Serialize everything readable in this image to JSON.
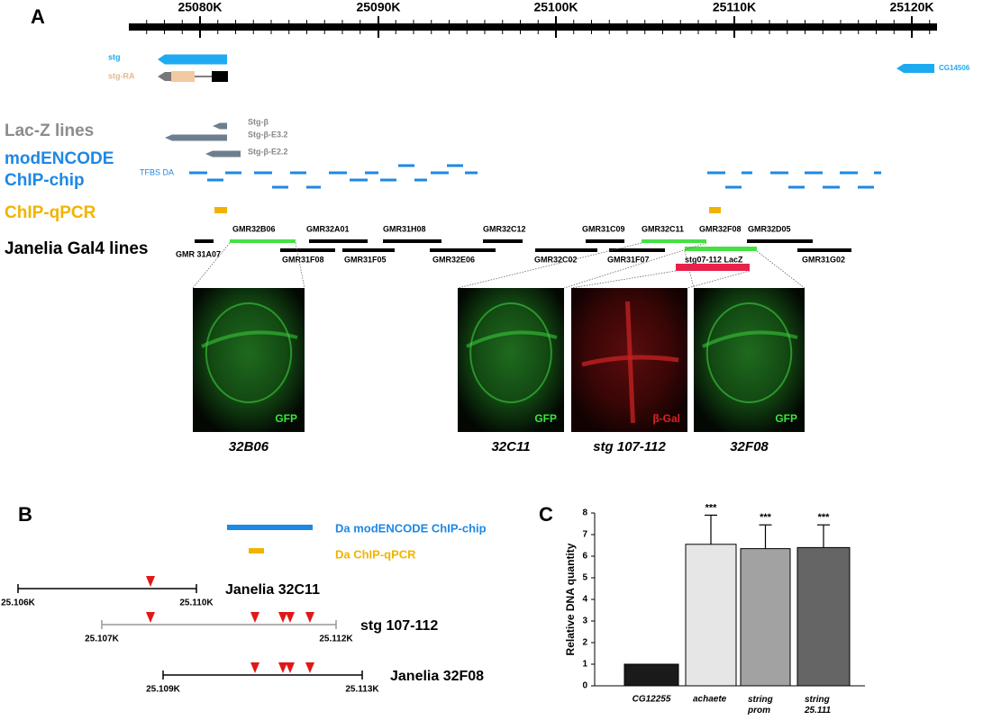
{
  "panel_a": {
    "letter": "A",
    "ruler_ticks": [
      "25080K",
      "25090K",
      "25100K",
      "25110K",
      "25120K"
    ],
    "genes": [
      "stg",
      "stg-RA",
      "CG14506"
    ],
    "lacz_label": "Lac-Z lines",
    "lacz_lines": [
      "Stg-β",
      "Stg-β-E3.2",
      "Stg-β-E2.2"
    ],
    "modencode_label": [
      "modENCODE",
      "ChIP-chip"
    ],
    "tfbs_label": "TFBS DA",
    "qpcr_label": "ChIP-qPCR",
    "janelia_label": "Janelia Gal4 lines",
    "gal4_top": [
      "GMR32B06",
      "GMR32A01",
      "GMR31H08",
      "GMR32C12",
      "GMR31C09",
      "GMR32C11",
      "GMR32F08",
      "GMR32D05"
    ],
    "gal4_bottom": [
      "GMR 31A07",
      "GMR31F08",
      "GMR31F05",
      "GMR32E06",
      "GMR32C02",
      "GMR31F07",
      "GMR31G02"
    ],
    "lacz_construct": "stg07-112 LacZ",
    "images": [
      {
        "stain": "GFP",
        "caption": "32B06"
      },
      {
        "stain": "GFP",
        "caption": "32C11"
      },
      {
        "stain": "β-Gal",
        "caption": "stg 107-112"
      },
      {
        "stain": "GFP",
        "caption": "32F08"
      }
    ]
  },
  "panel_b": {
    "letter": "B",
    "legend": [
      "Da modENCODE ChIP-chip",
      "Da ChIP-qPCR"
    ],
    "constructs": [
      {
        "name": "Janelia 32C11",
        "start": "25.106K",
        "end": "25.110K"
      },
      {
        "name": "stg 107-112",
        "start": "25.107K",
        "end": "25.112K"
      },
      {
        "name": "Janelia 32F08",
        "start": "25.109K",
        "end": "25.113K"
      }
    ]
  },
  "chart_data": {
    "type": "bar",
    "letter": "C",
    "y_label": "Relative DNA quantity",
    "categories": [
      "CG12255",
      "achaete",
      "string prom",
      "string 25.111"
    ],
    "values": [
      1.0,
      6.55,
      6.35,
      6.4
    ],
    "errors": [
      0,
      1.35,
      1.1,
      1.05
    ],
    "colors": [
      "#1a1a1a",
      "#e6e6e6",
      "#a2a2a2",
      "#656565"
    ],
    "annotations": [
      null,
      "***",
      "***",
      "***"
    ],
    "ylim": [
      0,
      8
    ],
    "yticks": [
      0,
      1,
      2,
      3,
      4,
      5,
      6,
      7,
      8
    ]
  }
}
